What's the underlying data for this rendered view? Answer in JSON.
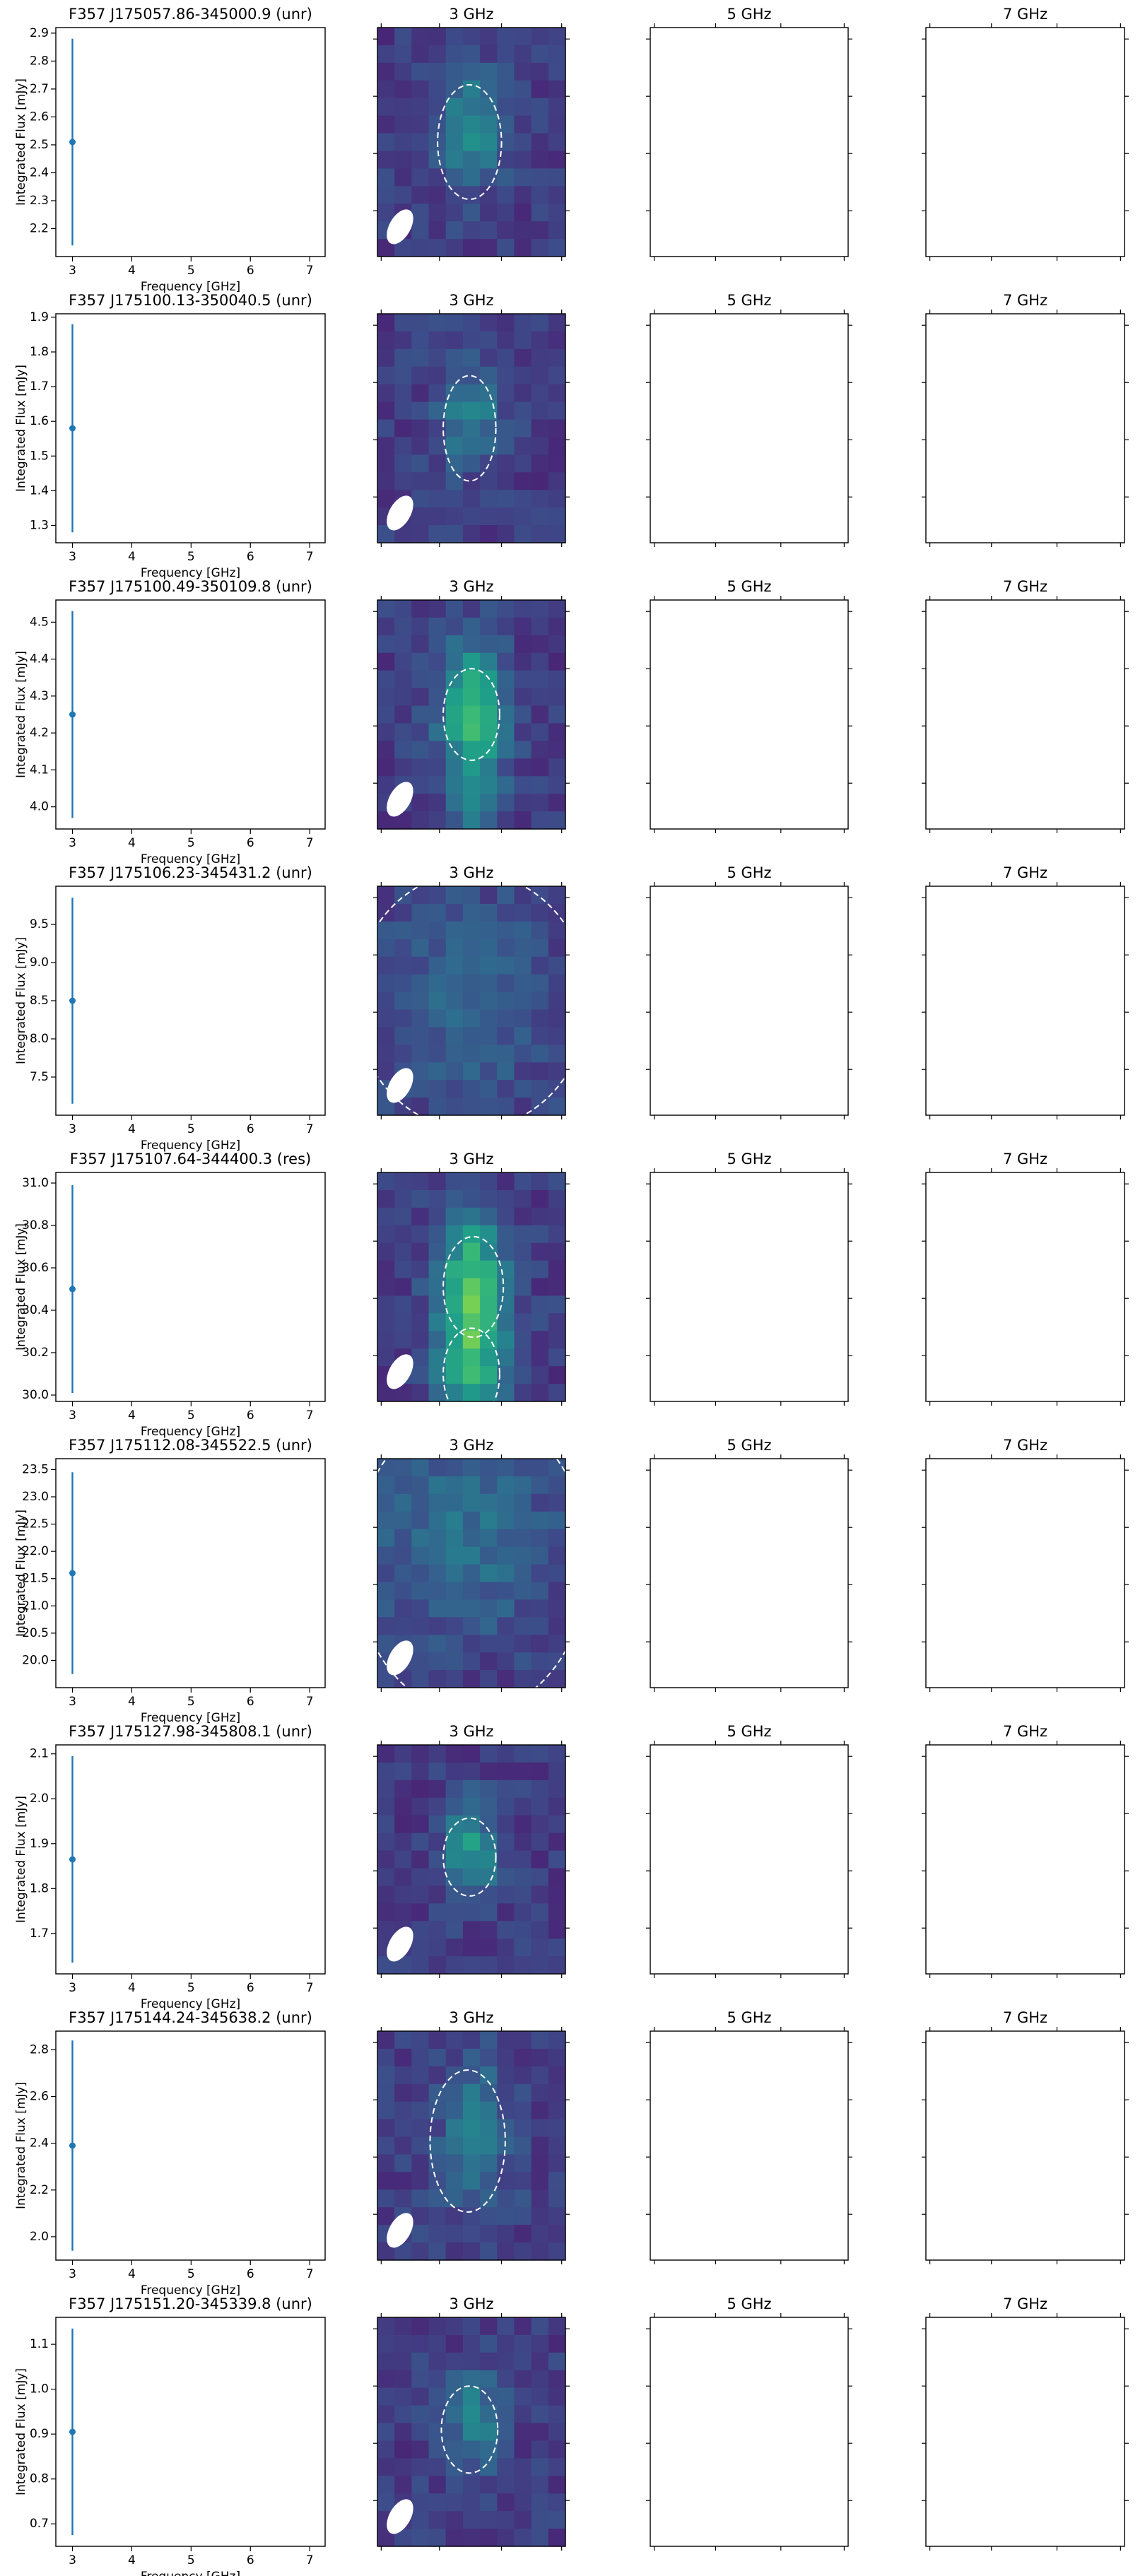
{
  "chart_data": [
    {
      "type": "errorbar",
      "title": "F357 J175057.86-345000.9 (unr)",
      "x_label": "Frequency [GHz]",
      "y_label": "Integrated Flux [mJy]",
      "x": [
        3
      ],
      "values": [
        2.51
      ],
      "errors": [
        0.37
      ],
      "color": "#1f77b4",
      "xlim": [
        2.72,
        7.26
      ],
      "xticks": [
        3,
        4,
        5,
        6,
        7
      ],
      "ylim": [
        2.1,
        2.92
      ],
      "yticks": [
        2.2,
        2.3,
        2.4,
        2.5,
        2.6,
        2.7,
        2.8,
        2.9
      ]
    },
    {
      "type": "image",
      "title": "3 GHz"
    },
    {
      "type": "image",
      "title": "5 GHz"
    },
    {
      "type": "image",
      "title": "7 GHz"
    },
    {
      "type": "errorbar",
      "title": "F357 J175100.13-350040.5 (unr)",
      "x_label": "Frequency [GHz]",
      "y_label": "Integrated Flux [mJy]",
      "x": [
        3
      ],
      "values": [
        1.58
      ],
      "errors": [
        0.3
      ],
      "color": "#1f77b4",
      "xlim": [
        2.72,
        7.26
      ],
      "xticks": [
        3,
        4,
        5,
        6,
        7
      ],
      "ylim": [
        1.25,
        1.91
      ],
      "yticks": [
        1.3,
        1.4,
        1.5,
        1.6,
        1.7,
        1.8,
        1.9
      ]
    },
    {
      "type": "image",
      "title": "3 GHz"
    },
    {
      "type": "image",
      "title": "5 GHz"
    },
    {
      "type": "image",
      "title": "7 GHz"
    },
    {
      "type": "errorbar",
      "title": "F357 J175100.49-350109.8 (unr)",
      "x_label": "Frequency [GHz]",
      "y_label": "Integrated Flux [mJy]",
      "x": [
        3
      ],
      "values": [
        4.25
      ],
      "errors": [
        0.28
      ],
      "color": "#1f77b4",
      "xlim": [
        2.72,
        7.26
      ],
      "xticks": [
        3,
        4,
        5,
        6,
        7
      ],
      "ylim": [
        3.94,
        4.56
      ],
      "yticks": [
        {
          "value": 4,
          "label": "4.0"
        },
        4.1,
        4.2,
        4.3,
        4.4,
        4.5
      ]
    },
    {
      "type": "image",
      "title": "3 GHz"
    },
    {
      "type": "image",
      "title": "5 GHz"
    },
    {
      "type": "image",
      "title": "7 GHz"
    },
    {
      "type": "errorbar",
      "title": "F357 J175106.23-345431.2 (unr)",
      "x_label": "Frequency [GHz]",
      "y_label": "Integrated Flux [mJy]",
      "x": [
        3
      ],
      "values": [
        8.5
      ],
      "errors": [
        1.35
      ],
      "color": "#1f77b4",
      "xlim": [
        2.72,
        7.26
      ],
      "xticks": [
        3,
        4,
        5,
        6,
        7
      ],
      "ylim": [
        7.0,
        10.0
      ],
      "yticks": [
        7.5,
        {
          "value": 8,
          "label": "8.0"
        },
        8.5,
        {
          "value": 9,
          "label": "9.0"
        },
        9.5
      ]
    },
    {
      "type": "image",
      "title": "3 GHz"
    },
    {
      "type": "image",
      "title": "5 GHz"
    },
    {
      "type": "image",
      "title": "7 GHz"
    },
    {
      "type": "errorbar",
      "title": "F357 J175107.64-344400.3 (res)",
      "x_label": "Frequency [GHz]",
      "y_label": "Integrated Flux [mJy]",
      "x": [
        3
      ],
      "values": [
        30.5
      ],
      "errors": [
        0.49
      ],
      "color": "#1f77b4",
      "xlim": [
        2.72,
        7.26
      ],
      "xticks": [
        3,
        4,
        5,
        6,
        7
      ],
      "ylim": [
        29.97,
        31.05
      ],
      "yticks": [
        {
          "value": 30,
          "label": "30.0"
        },
        30.2,
        30.4,
        30.6,
        30.8,
        {
          "value": 31,
          "label": "31.0"
        }
      ]
    },
    {
      "type": "image",
      "title": "3 GHz"
    },
    {
      "type": "image",
      "title": "5 GHz"
    },
    {
      "type": "image",
      "title": "7 GHz"
    },
    {
      "type": "errorbar",
      "title": "F357 J175112.08-345522.5 (unr)",
      "x_label": "Frequency [GHz]",
      "y_label": "Integrated Flux [mJy]",
      "x": [
        3
      ],
      "values": [
        21.6
      ],
      "errors": [
        1.85
      ],
      "color": "#1f77b4",
      "xlim": [
        2.72,
        7.26
      ],
      "xticks": [
        3,
        4,
        5,
        6,
        7
      ],
      "ylim": [
        19.5,
        23.7
      ],
      "yticks": [
        {
          "value": 20,
          "label": "20.0"
        },
        20.5,
        {
          "value": 21,
          "label": "21.0"
        },
        21.5,
        {
          "value": 22,
          "label": "22.0"
        },
        22.5,
        {
          "value": 23,
          "label": "23.0"
        },
        23.5
      ]
    },
    {
      "type": "image",
      "title": "3 GHz"
    },
    {
      "type": "image",
      "title": "5 GHz"
    },
    {
      "type": "image",
      "title": "7 GHz"
    },
    {
      "type": "errorbar",
      "title": "F357 J175127.98-345808.1 (unr)",
      "x_label": "Frequency [GHz]",
      "y_label": "Integrated Flux [mJy]",
      "x": [
        3
      ],
      "values": [
        1.865
      ],
      "errors": [
        0.23
      ],
      "color": "#1f77b4",
      "xlim": [
        2.72,
        7.26
      ],
      "xticks": [
        3,
        4,
        5,
        6,
        7
      ],
      "ylim": [
        1.61,
        2.12
      ],
      "yticks": [
        1.7,
        1.8,
        1.9,
        {
          "value": 2,
          "label": "2.0"
        },
        2.1
      ]
    },
    {
      "type": "image",
      "title": "3 GHz"
    },
    {
      "type": "image",
      "title": "5 GHz"
    },
    {
      "type": "image",
      "title": "7 GHz"
    },
    {
      "type": "errorbar",
      "title": "F357 J175144.24-345638.2 (unr)",
      "x_label": "Frequency [GHz]",
      "y_label": "Integrated Flux [mJy]",
      "x": [
        3
      ],
      "values": [
        2.39
      ],
      "errors": [
        0.45
      ],
      "color": "#1f77b4",
      "xlim": [
        2.72,
        7.26
      ],
      "xticks": [
        3,
        4,
        5,
        6,
        7
      ],
      "ylim": [
        1.9,
        2.88
      ],
      "yticks": [
        {
          "value": 2,
          "label": "2.0"
        },
        2.2,
        2.4,
        2.6,
        2.8
      ]
    },
    {
      "type": "image",
      "title": "3 GHz"
    },
    {
      "type": "image",
      "title": "5 GHz"
    },
    {
      "type": "image",
      "title": "7 GHz"
    },
    {
      "type": "errorbar",
      "title": "F357 J175151.20-345339.8 (unr)",
      "x_label": "Frequency [GHz]",
      "y_label": "Integrated Flux [mJy]",
      "x": [
        3
      ],
      "values": [
        0.905
      ],
      "errors": [
        0.23
      ],
      "color": "#1f77b4",
      "xlim": [
        2.72,
        7.26
      ],
      "xticks": [
        3,
        4,
        5,
        6,
        7
      ],
      "ylim": [
        0.65,
        1.16
      ],
      "yticks": [
        0.7,
        0.8,
        0.9,
        {
          "value": 1,
          "label": "1.0"
        },
        1.1
      ]
    },
    {
      "type": "image",
      "title": "3 GHz"
    },
    {
      "type": "image",
      "title": "5 GHz"
    },
    {
      "type": "image",
      "title": "7 GHz"
    }
  ]
}
